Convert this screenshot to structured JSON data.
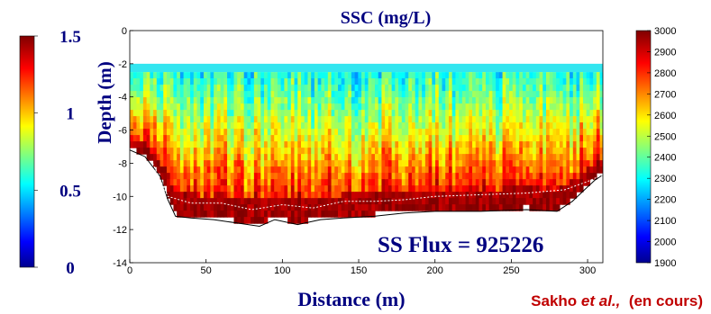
{
  "chart_data": {
    "type": "heatmap",
    "title": "SSC (mg/L)",
    "xlabel": "Distance (m)",
    "ylabel": "Depth (m)",
    "xlim": [
      0,
      310
    ],
    "ylim": [
      -14,
      0
    ],
    "x_ticks": [
      0,
      50,
      100,
      150,
      200,
      250,
      300
    ],
    "y_ticks": [
      0,
      -2,
      -4,
      -6,
      -8,
      -10,
      -12,
      -14
    ],
    "colorscale": "jet",
    "right_colorbar": {
      "range": [
        1900,
        3000
      ],
      "ticks": [
        3000,
        2900,
        2800,
        2700,
        2600,
        2500,
        2400,
        2300,
        2200,
        2100,
        2000,
        1900
      ]
    },
    "left_colorbar": {
      "range": [
        0,
        1.5
      ],
      "ticks": [
        "1.5",
        "1",
        "0.5",
        "0"
      ]
    },
    "surface_layer_depth": [
      -2,
      -2.5
    ],
    "bottom_profile": [
      [
        0,
        -7.2
      ],
      [
        10,
        -7.6
      ],
      [
        20,
        -8.8
      ],
      [
        25,
        -10.2
      ],
      [
        30,
        -11.2
      ],
      [
        40,
        -11.3
      ],
      [
        55,
        -11.4
      ],
      [
        70,
        -11.6
      ],
      [
        85,
        -11.8
      ],
      [
        95,
        -11.4
      ],
      [
        110,
        -11.7
      ],
      [
        125,
        -11.4
      ],
      [
        140,
        -11.3
      ],
      [
        160,
        -11.2
      ],
      [
        180,
        -11.0
      ],
      [
        200,
        -10.9
      ],
      [
        230,
        -10.9
      ],
      [
        260,
        -10.8
      ],
      [
        280,
        -10.9
      ],
      [
        290,
        -10.3
      ],
      [
        298,
        -9.6
      ],
      [
        305,
        -9.0
      ],
      [
        310,
        -8.7
      ]
    ],
    "annotation_line": [
      [
        15,
        -8.0
      ],
      [
        25,
        -10.0
      ],
      [
        40,
        -10.4
      ],
      [
        60,
        -10.4
      ],
      [
        80,
        -10.8
      ],
      [
        100,
        -10.5
      ],
      [
        120,
        -10.7
      ],
      [
        140,
        -10.3
      ],
      [
        160,
        -10.3
      ],
      [
        180,
        -10.2
      ],
      [
        200,
        -10.0
      ],
      [
        230,
        -9.9
      ],
      [
        260,
        -9.8
      ],
      [
        285,
        -9.6
      ],
      [
        300,
        -9.1
      ],
      [
        310,
        -8.7
      ]
    ]
  },
  "annotations": {
    "flux": "SS Flux = 925226",
    "credit_name": "Sakho ",
    "credit_etal": "et al.,",
    "credit_rest": "  (en cours)"
  },
  "colors": {
    "credit": "#c00000",
    "text": "#000080"
  }
}
